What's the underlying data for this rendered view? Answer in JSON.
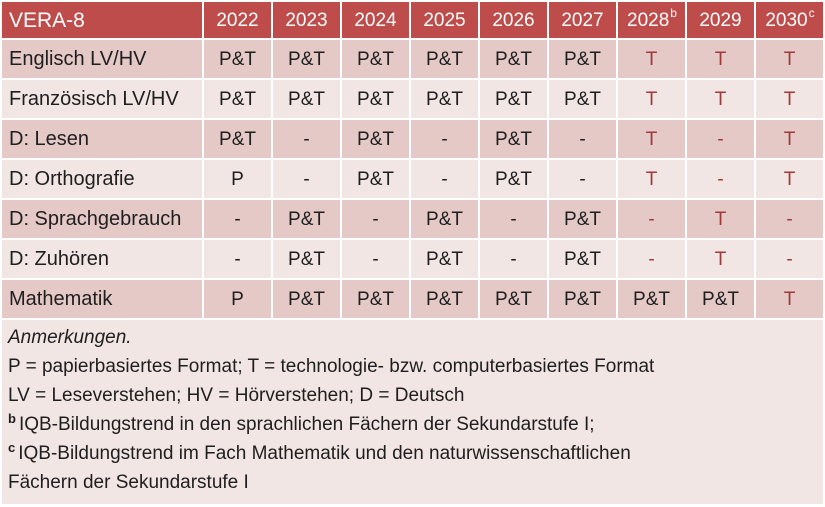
{
  "table": {
    "title": "VERA-8",
    "columns": [
      {
        "label": "2022",
        "sup": ""
      },
      {
        "label": "2023",
        "sup": ""
      },
      {
        "label": "2024",
        "sup": ""
      },
      {
        "label": "2025",
        "sup": ""
      },
      {
        "label": "2026",
        "sup": ""
      },
      {
        "label": "2027",
        "sup": ""
      },
      {
        "label": "2028",
        "sup": "b"
      },
      {
        "label": "2029",
        "sup": ""
      },
      {
        "label": "2030",
        "sup": "c"
      }
    ],
    "rows": [
      {
        "label": "Englisch LV/HV",
        "cells": [
          "P&T",
          "P&T",
          "P&T",
          "P&T",
          "P&T",
          "P&T",
          "T",
          "T",
          "T"
        ]
      },
      {
        "label": "Französisch LV/HV",
        "cells": [
          "P&T",
          "P&T",
          "P&T",
          "P&T",
          "P&T",
          "P&T",
          "T",
          "T",
          "T"
        ]
      },
      {
        "label": "D: Lesen",
        "cells": [
          "P&T",
          "-",
          "P&T",
          "-",
          "P&T",
          "-",
          "T",
          "-",
          "T"
        ]
      },
      {
        "label": "D: Orthografie",
        "cells": [
          "P",
          "-",
          "P&T",
          "-",
          "P&T",
          "-",
          "T",
          "-",
          "T"
        ]
      },
      {
        "label": "D: Sprachgebrauch",
        "cells": [
          "-",
          "P&T",
          "-",
          "P&T",
          "-",
          "P&T",
          "-",
          "T",
          "-"
        ]
      },
      {
        "label": "D: Zuhören",
        "cells": [
          "-",
          "P&T",
          "-",
          "P&T",
          "-",
          "P&T",
          "-",
          "T",
          "-"
        ]
      },
      {
        "label": "Mathematik",
        "cells": [
          "P",
          "P&T",
          "P&T",
          "P&T",
          "P&T",
          "P&T",
          "P&T",
          "P&T",
          "T"
        ]
      }
    ]
  },
  "notes": {
    "heading": "Anmerkungen.",
    "legend_formats": "P = papierbasiertes Format; T = technologie- bzw. computerbasiertes Format",
    "legend_abbrev": "LV = Leseverstehen; HV = Hörverstehen; D = Deutsch",
    "footnote_b": {
      "sup": "b",
      "text": "IQB-Bildungstrend in den sprachlichen Fächern der Sekundarstufe I;"
    },
    "footnote_c": {
      "sup": "c",
      "text": "IQB-Bildungstrend im Fach Mathematik und den naturwissenschaftlichen"
    },
    "footnote_c_wrap": "Fächern der Sekundarstufe I"
  },
  "colors": {
    "header_bg": "#be4c4a",
    "header_text": "#ffffff",
    "band_dark": "#e5c9c7",
    "band_light": "#f2e6e4",
    "accent_text": "#9e3b3a",
    "body_text": "#1e1e1e"
  }
}
